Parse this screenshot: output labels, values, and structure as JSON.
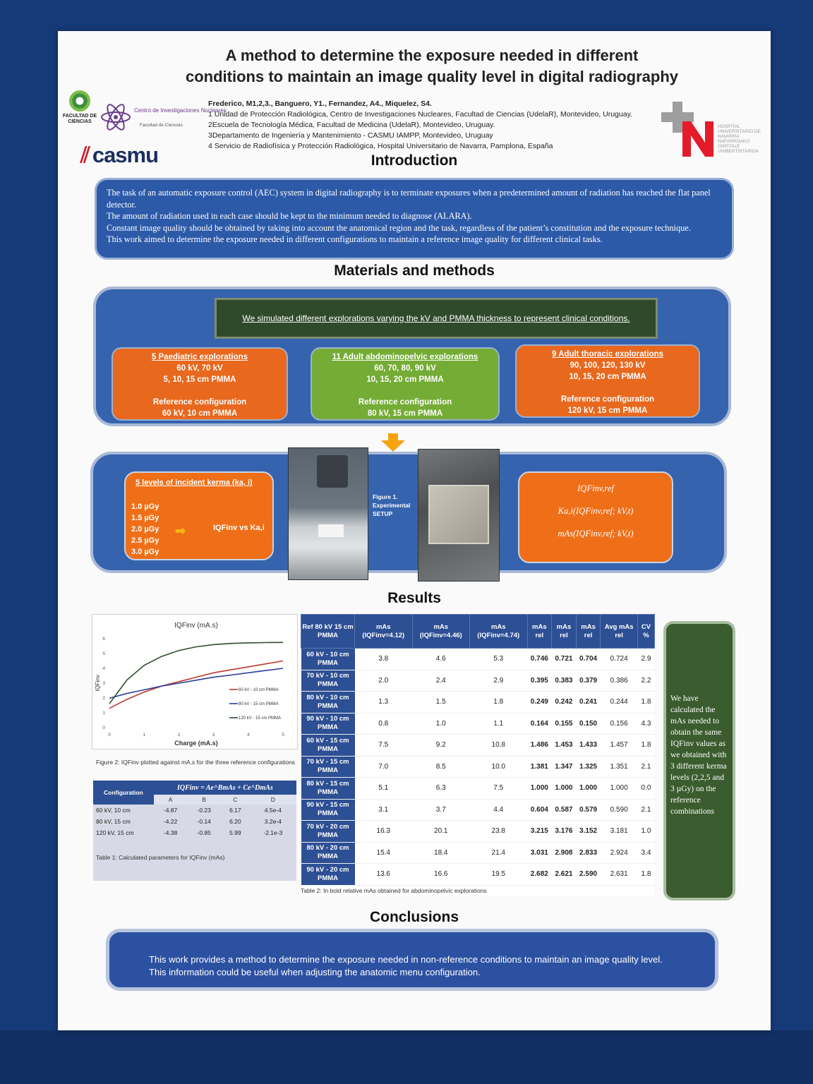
{
  "title": "A method to determine the exposure needed in different\nconditions to maintain an image quality level in digital radiography",
  "authors": {
    "names": "Frederico, M1,2,3., Banguero, Y1., Fernandez, A4., Miquelez, S4.",
    "affiliations": [
      "1 Unidad de Protección Radiológica, Centro de Investigaciones Nucleares, Facultad de Ciencias (UdelaR), Montevideo, Uruguay.",
      "2Escuela de Tecnología Médica, Facultad de Medicina (UdelaR), Montevideo, Uruguay.",
      "3Departamento de Ingeniería y Mantenimiento - CASMU IAMPP, Montevideo, Uruguay",
      "4 Servicio de Radiofísica y Protección Radiológica, Hospital Universitario de Navarra, Pamplona, España"
    ]
  },
  "logos": {
    "ciencias": "FACULTAD DE CIENCIAS",
    "cin_line1": "Centro de Investigaciones Nucleares",
    "cin_line2": "Facultad de Ciencias",
    "casmu": "casmu",
    "hun": "HOSPITAL UNIVERSITARIO DE NAVARRA NAFARROAKO OSPITALE UNIBERTSITARIOA"
  },
  "intro": {
    "heading": "Introduction",
    "paragraphs": [
      "The task of an automatic exposure control (AEC) system in digital radiography is to terminate exposures when a predetermined amount of radiation has reached the flat panel detector.",
      "The amount of radiation used in each case should be kept to the minimum needed to diagnose (ALARA).",
      " Constant image quality should be obtained by taking into account the anatomical region and the task, regardless of the patient’s constitution and the exposure technique.",
      "This work aimed to determine the exposure needed in different configurations to maintain a reference image quality for different clinical tasks."
    ]
  },
  "methods": {
    "heading": "Materials and methods",
    "banner": "We simulated different explorations varying the kV and PMMA thickness to represent clinical conditions.",
    "cards": [
      {
        "title": "5 Paediatric explorations",
        "l1": "60 kV, 70 kV",
        "l2": "5, 10, 15 cm PMMA",
        "ref": "Reference configuration",
        "refval": "60 kV, 10 cm PMMA"
      },
      {
        "title": "11 Adult abdominopelvic explorations",
        "l1": "60, 70, 80, 90 kV",
        "l2": "10, 15, 20 cm PMMA",
        "ref": "Reference configuration",
        "refval": "80 kV, 15 cm PMMA"
      },
      {
        "title": "9 Adult thoracic explorations",
        "l1": "90, 100, 120, 130 kV",
        "l2": "10, 15, 20 cm PMMA",
        "ref": "Reference configuration",
        "refval": "120 kV, 15 cm PMMA"
      }
    ],
    "kerma_title": "5 levels of incident kerma (ka, i)",
    "kerma_levels": [
      "1.0 µGy",
      "1.5 µGy",
      "2.0 µGy",
      "2.5 µGy",
      "3.0 µGy"
    ],
    "kerma_result": "IQFinv vs Ka,i",
    "fig1": "Figure 1. Experimental SETUP",
    "formulas": [
      "IQFinv,ref",
      "Ka,i(IQFinv,ref; kV,t)",
      "mAs(IQFinv,ref; kV,t)"
    ]
  },
  "results": {
    "heading": "Results",
    "fig2_caption": "Figure 2: IQFinv plotted against mA.s for the three reference configurations",
    "table1": {
      "formula": "IQFinv = Ae^BmAs + Ce^DmAs",
      "cfg_header": "Configuration",
      "cols": [
        "A",
        "B",
        "C",
        "D"
      ],
      "rows": [
        [
          "60 kV, 10 cm",
          "-4.87",
          "-0.23",
          "6.17",
          "4.5e-4"
        ],
        [
          "80 kV, 15 cm",
          "-4.22",
          "-0.14",
          "6.20",
          "3.2e-4"
        ],
        [
          "120 kV, 15 cm",
          "-4.38",
          "-0.85",
          "5.99",
          "-2.1e-3"
        ]
      ],
      "caption": "Table 1: Calculated parameters for IQFinv (mAs)"
    },
    "table2": {
      "headers": [
        "Ref 80 kV 15 cm PMMA",
        "mAs (IQFinv=4.12)",
        "mAs (IQFinv=4.46)",
        "mAs (IQFinv=4.74)",
        "mAs rel",
        "mAs rel",
        "mAs rel",
        "Avg mAs rel",
        "CV %"
      ],
      "rows": [
        [
          "60 kV - 10 cm PMMA",
          "3.8",
          "4.6",
          "5.3",
          "0.746",
          "0.721",
          "0.704",
          "0.724",
          "2.9"
        ],
        [
          "70 kV - 10 cm PMMA",
          "2.0",
          "2.4",
          "2.9",
          "0.395",
          "0.383",
          "0.379",
          "0.386",
          "2.2"
        ],
        [
          "80 kV - 10 cm PMMA",
          "1.3",
          "1.5",
          "1.8",
          "0.249",
          "0.242",
          "0.241",
          "0.244",
          "1.8"
        ],
        [
          "90 kV - 10 cm PMMA",
          "0.8",
          "1.0",
          "1.1",
          "0.164",
          "0.155",
          "0.150",
          "0.156",
          "4.3"
        ],
        [
          "60 kV - 15 cm PMMA",
          "7.5",
          "9.2",
          "10.8",
          "1.486",
          "1.453",
          "1.433",
          "1.457",
          "1.8"
        ],
        [
          "70 kV - 15 cm PMMA",
          "7.0",
          "8.5",
          "10.0",
          "1.381",
          "1.347",
          "1.325",
          "1.351",
          "2.1"
        ],
        [
          "80 kV - 15 cm PMMA",
          "5.1",
          "6.3",
          "7.5",
          "1.000",
          "1.000",
          "1.000",
          "1.000",
          "0.0"
        ],
        [
          "90 kV - 15 cm PMMA",
          "3.1",
          "3.7",
          "4.4",
          "0.604",
          "0.587",
          "0.579",
          "0.590",
          "2.1"
        ],
        [
          "70 kV - 20 cm PMMA",
          "16.3",
          "20.1",
          "23.8",
          "3.215",
          "3.176",
          "3.152",
          "3.181",
          "1.0"
        ],
        [
          "80 kV - 20 cm PMMA",
          "15.4",
          "18.4",
          "21.4",
          "3.031",
          "2.908",
          "2.833",
          "2.924",
          "3.4"
        ],
        [
          "90 kV - 20 cm PMMA",
          "13.6",
          "16.6",
          "19.5",
          "2.682",
          "2.621",
          "2.590",
          "2.631",
          "1.8"
        ]
      ],
      "caption": "Table 2: In bold relative mAs obtained for abdominopelvic explorations"
    },
    "summary": "We have calculated the mAs needed to obtain the same IQFinv values as we obtained with 3 different kerma levels (2,2,5 and 3 µGy) on the reference combinations"
  },
  "conclusions": {
    "heading": "Conclusions",
    "text": "This work provides a method to determine the exposure needed in non-reference conditions to maintain an image quality level. This information could be useful when adjusting the anatomic menu configuration."
  },
  "chart_data": {
    "type": "line",
    "title": "IQFinv (mA.s)",
    "xlabel": "Charge (mA.s)",
    "ylabel": "IQFinv",
    "xlim": [
      0,
      5
    ],
    "ylim": [
      0,
      6
    ],
    "xticks": [
      0,
      1,
      2,
      3,
      4,
      5
    ],
    "yticks": [
      0,
      1,
      2,
      3,
      4,
      5,
      6
    ],
    "x": [
      0,
      0.5,
      1,
      1.5,
      2,
      2.5,
      3,
      3.5,
      4,
      4.5,
      5
    ],
    "series": [
      {
        "name": "60 kV - 10 cm PMMA",
        "color": "#c0392b",
        "values": [
          1.3,
          1.9,
          2.4,
          2.8,
          3.1,
          3.4,
          3.7,
          3.9,
          4.1,
          4.3,
          4.5
        ]
      },
      {
        "name": "80 kV - 15 cm PMMA",
        "color": "#2c3e9a",
        "values": [
          1.98,
          2.3,
          2.55,
          2.8,
          3.0,
          3.2,
          3.4,
          3.55,
          3.7,
          3.85,
          4.0
        ]
      },
      {
        "name": "120 kV - 15 cm PMMA",
        "color": "#2e4d2e",
        "values": [
          1.61,
          3.2,
          4.2,
          4.8,
          5.2,
          5.45,
          5.6,
          5.68,
          5.72,
          5.74,
          5.75
        ]
      }
    ],
    "legend_position": "middle-right",
    "grid": false
  }
}
